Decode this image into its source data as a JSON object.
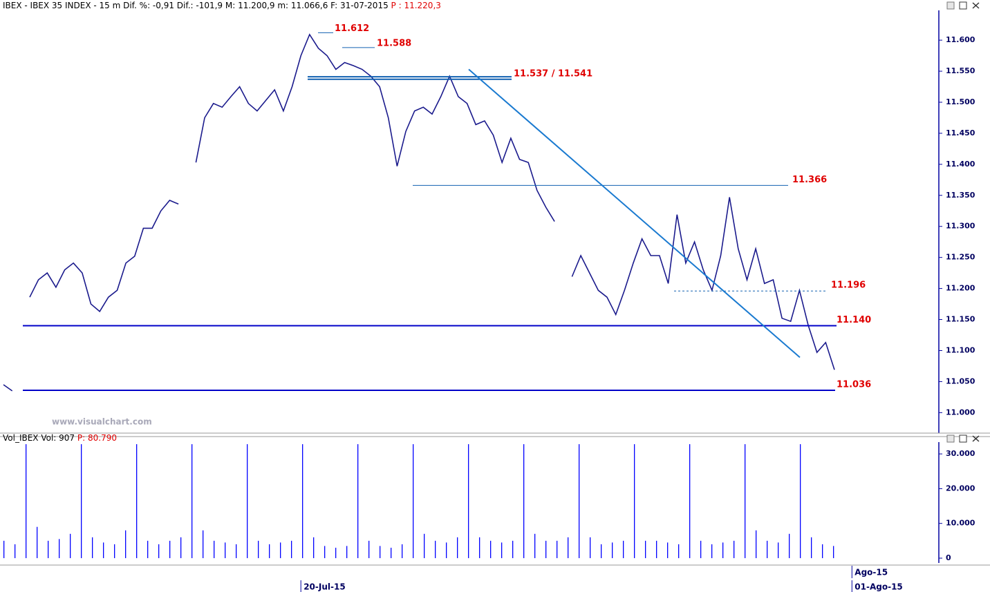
{
  "chart_data": [
    {
      "type": "line",
      "header": "IBEX - IBEX 35 INDEX -  15 m  Dif. %: -0,91  Dif.: -101,9  M: 11.200,9  m: 11.066,6  F: 31-07-2015",
      "header_highlight": "P : 11.220,3",
      "watermark": "www.visualchart.com",
      "series": [
        {
          "color": "#1a1a8c",
          "values": [
            11.045,
            11.035,
            null,
            11.186,
            11.214,
            11.225,
            11.202,
            11.23,
            11.241,
            11.225,
            11.175,
            11.163,
            11.186,
            11.197,
            11.241,
            11.252,
            11.297,
            11.297,
            11.325,
            11.342,
            11.336,
            null,
            11.403,
            11.475,
            11.498,
            11.492,
            11.509,
            11.525,
            11.498,
            11.486,
            11.503,
            11.52,
            11.486,
            11.525,
            11.575,
            11.609,
            11.587,
            11.575,
            11.553,
            11.564,
            11.559,
            11.553,
            11.542,
            11.525,
            11.475,
            11.397,
            11.453,
            11.486,
            11.492,
            11.481,
            11.509,
            11.542,
            11.509,
            11.498,
            11.464,
            11.47,
            11.447,
            11.403,
            11.442,
            11.408,
            11.403,
            11.358,
            11.331,
            11.308,
            null,
            11.219,
            11.253,
            11.225,
            11.197,
            11.186,
            11.158,
            11.197,
            11.241,
            11.28,
            11.253,
            11.253,
            11.208,
            11.319,
            11.241,
            11.275,
            11.23,
            11.197,
            11.253,
            11.347,
            11.264,
            11.214,
            11.264,
            11.208,
            11.214,
            11.152,
            11.147,
            11.197,
            11.141,
            11.097,
            11.113,
            11.069
          ]
        }
      ],
      "ylim": [
        10.967,
        11.648
      ],
      "yticks": [
        {
          "value": 11.0,
          "label": "11.000"
        },
        {
          "value": 11.05,
          "label": "11.050"
        },
        {
          "value": 11.1,
          "label": "11.100"
        },
        {
          "value": 11.15,
          "label": "11.150"
        },
        {
          "value": 11.2,
          "label": "11.200"
        },
        {
          "value": 11.25,
          "label": "11.250"
        },
        {
          "value": 11.3,
          "label": "11.300"
        },
        {
          "value": 11.35,
          "label": "11.350"
        },
        {
          "value": 11.4,
          "label": "11.400"
        },
        {
          "value": 11.45,
          "label": "11.450"
        },
        {
          "value": 11.5,
          "label": "11.500"
        },
        {
          "value": 11.55,
          "label": "11.550"
        },
        {
          "value": 11.6,
          "label": "11.600"
        }
      ],
      "levels": [
        {
          "values": [
            11.612
          ],
          "label": "11.612"
        },
        {
          "values": [
            11.588
          ],
          "label": "11.588"
        },
        {
          "values": [
            11.537,
            11.541
          ],
          "label": "11.537 / 11.541"
        },
        {
          "values": [
            11.366
          ],
          "label": "11.366"
        },
        {
          "values": [
            11.196
          ],
          "label": "11.196",
          "style": "dashed"
        },
        {
          "values": [
            11.14
          ],
          "label": "11.140"
        },
        {
          "values": [
            11.036
          ],
          "label": "11.036"
        }
      ],
      "trendline": [
        11.553,
        11.089
      ],
      "xticks": [
        {
          "value": 34,
          "label": "20-Jul-15"
        },
        {
          "value": 97,
          "label": "01-Ago-15"
        }
      ],
      "month_ticks": [
        {
          "value": 97,
          "label": "Ago-15"
        }
      ]
    },
    {
      "type": "bar",
      "header": "Vol_IBEX Vol: 907",
      "header_highlight": "P: 80.790",
      "color": "#0000ff",
      "values": [
        5000,
        4000,
        32800,
        9000,
        5000,
        5500,
        7000,
        32800,
        6000,
        4500,
        4000,
        8000,
        32800,
        5000,
        4000,
        5000,
        6000,
        32800,
        8000,
        5000,
        4500,
        4000,
        32800,
        5000,
        4000,
        4500,
        5000,
        32800,
        6000,
        3500,
        3000,
        3500,
        32800,
        5000,
        3500,
        3000,
        4000,
        32800,
        7000,
        5000,
        4500,
        6000,
        32800,
        6000,
        5000,
        4500,
        5000,
        32800,
        7000,
        5000,
        5000,
        6000,
        32800,
        6000,
        4000,
        4500,
        5000,
        32800,
        5000,
        5000,
        4500,
        4000,
        32800,
        5000,
        4000,
        4500,
        5000,
        32800,
        8000,
        5000,
        4500,
        7000,
        32800,
        6000,
        4000,
        3500
      ],
      "ylim": [
        0,
        33400
      ],
      "yticks": [
        0,
        {
          "value": 10000,
          "label": "10.000"
        },
        {
          "value": 20000,
          "label": "20.000"
        },
        {
          "value": 30000,
          "label": "30.000"
        }
      ]
    }
  ]
}
